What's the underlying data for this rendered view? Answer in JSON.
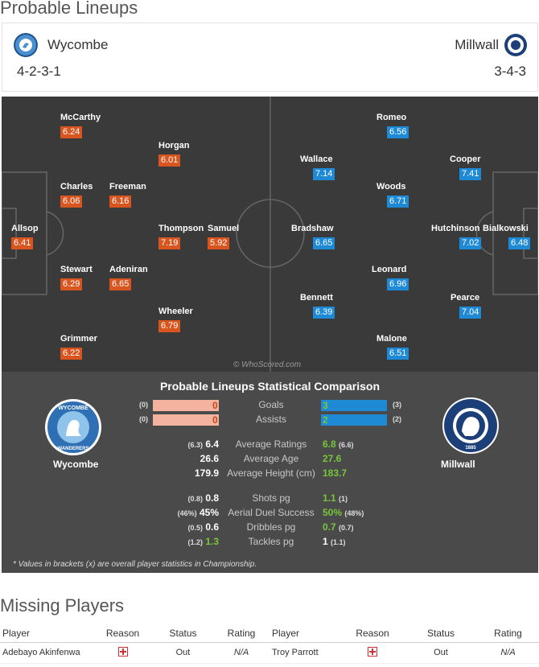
{
  "lineups": {
    "title": "Probable Lineups",
    "home": {
      "name": "Wycombe",
      "formation": "4-2-3-1"
    },
    "away": {
      "name": "Millwall",
      "formation": "3-4-3"
    }
  },
  "pitch": {
    "watermark": "© WhoScored.com",
    "home_players": [
      {
        "name": "McCarthy",
        "rating": "6.24"
      },
      {
        "name": "Horgan",
        "rating": "6.01"
      },
      {
        "name": "Charles",
        "rating": "6.06"
      },
      {
        "name": "Freeman",
        "rating": "6.16"
      },
      {
        "name": "Allsop",
        "rating": "6.41"
      },
      {
        "name": "Thompson",
        "rating": "7.19"
      },
      {
        "name": "Samuel",
        "rating": "5.92"
      },
      {
        "name": "Stewart",
        "rating": "6.29"
      },
      {
        "name": "Adeniran",
        "rating": "6.65"
      },
      {
        "name": "Wheeler",
        "rating": "6.79"
      },
      {
        "name": "Grimmer",
        "rating": "6.22"
      }
    ],
    "away_players": [
      {
        "name": "Romeo",
        "rating": "6.56"
      },
      {
        "name": "Wallace",
        "rating": "7.14"
      },
      {
        "name": "Cooper",
        "rating": "7.41"
      },
      {
        "name": "Woods",
        "rating": "6.71"
      },
      {
        "name": "Bradshaw",
        "rating": "6.65"
      },
      {
        "name": "Hutchinson",
        "rating": "7.02"
      },
      {
        "name": "Bialkowski",
        "rating": "6.48"
      },
      {
        "name": "Leonard",
        "rating": "6.96"
      },
      {
        "name": "Bennett",
        "rating": "6.39"
      },
      {
        "name": "Pearce",
        "rating": "7.04"
      },
      {
        "name": "Malone",
        "rating": "6.51"
      }
    ]
  },
  "comparison": {
    "title": "Probable Lineups Statistical Comparison",
    "home_team": "Wycombe",
    "away_team": "Millwall",
    "home_badge_text": "WYCOMBE WANDERERS",
    "away_badge_text": "MILLWALL FOOTBALL CLUB 1885",
    "goals": {
      "label": "Goals",
      "home": "0",
      "home_overall": "(0)",
      "away": "3",
      "away_overall": "(3)",
      "home_share": 1.0,
      "away_share": 1.0
    },
    "assists": {
      "label": "Assists",
      "home": "0",
      "home_overall": "(0)",
      "away": "2",
      "away_overall": "(2)",
      "home_share": 1.0,
      "away_share": 1.0
    },
    "avg_ratings": {
      "label": "Average Ratings",
      "home": "6.4",
      "home_overall": "(6.3)",
      "away": "6.8",
      "away_overall": "(6.6)"
    },
    "avg_age": {
      "label": "Average Age",
      "home": "26.6",
      "away": "27.6"
    },
    "avg_height": {
      "label": "Average Height (cm)",
      "home": "179.9",
      "away": "183.7"
    },
    "shots": {
      "label": "Shots pg",
      "home": "0.8",
      "home_overall": "(0.8)",
      "away": "1.1",
      "away_overall": "(1)"
    },
    "aerial": {
      "label": "Aerial Duel Success",
      "home": "45%",
      "home_overall": "(46%)",
      "away": "50%",
      "away_overall": "(48%)"
    },
    "dribbles": {
      "label": "Dribbles pg",
      "home": "0.6",
      "home_overall": "(0.5)",
      "away": "0.7",
      "away_overall": "(0.7)"
    },
    "tackles": {
      "label": "Tackles pg",
      "home": "1.3",
      "home_overall": "(1.2)",
      "away": "1",
      "away_overall": "(1.1)"
    },
    "footnote": "* Values in brackets (x) are overall player statistics in Championship."
  },
  "missing": {
    "title": "Missing Players",
    "headers": [
      "Player",
      "Reason",
      "Status",
      "Rating",
      "Player",
      "Reason",
      "Status",
      "Rating"
    ],
    "rows": [
      {
        "home_player": "Adebayo Akinfenwa",
        "home_status": "Out",
        "home_rating": "N/A",
        "away_player": "Troy Parrott",
        "away_status": "Out",
        "away_rating": "N/A"
      }
    ]
  },
  "colors": {
    "home_rating": "#d9551f",
    "away_rating": "#1e8ad6",
    "better": "#78c63a",
    "pitch": "#3a3a3a"
  }
}
